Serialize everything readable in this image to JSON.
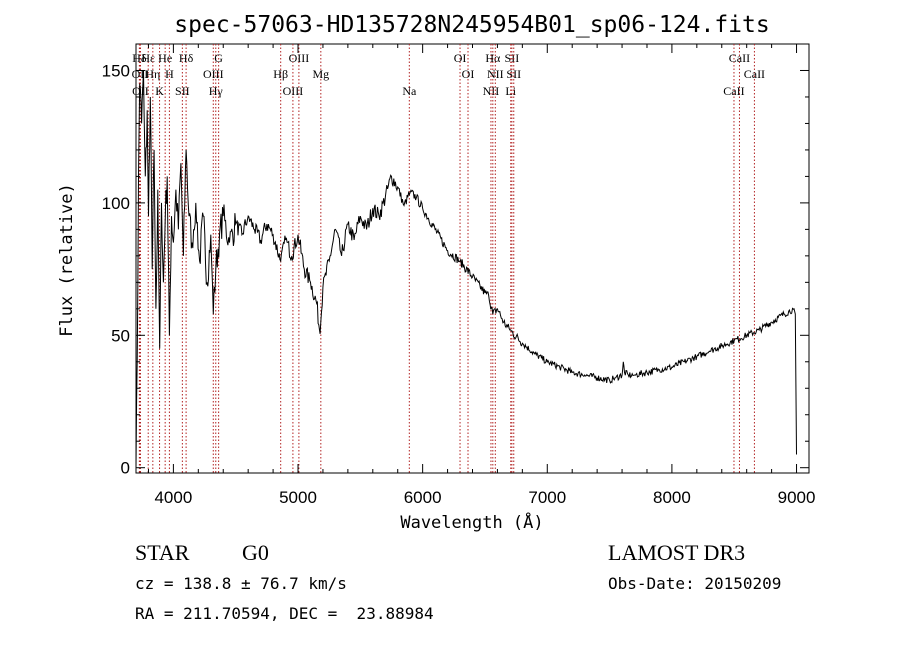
{
  "chart_data": {
    "type": "line",
    "title": "spec-57063-HD135728N245954B01_sp06-124.fits",
    "xlabel": "Wavelength (Å)",
    "ylabel": "Flux (relative)",
    "xlim": [
      3700,
      9100
    ],
    "ylim": [
      -2,
      160
    ],
    "x_ticks": [
      4000,
      5000,
      6000,
      7000,
      8000,
      9000
    ],
    "y_ticks": [
      0,
      50,
      100,
      150
    ],
    "grid": false,
    "series": [
      {
        "name": "flux",
        "x": [
          3700,
          3710,
          3720,
          3730,
          3745,
          3760,
          3775,
          3790,
          3800,
          3815,
          3830,
          3845,
          3860,
          3875,
          3890,
          3905,
          3920,
          3935,
          3950,
          3968,
          3985,
          4000,
          4020,
          4040,
          4060,
          4080,
          4102,
          4125,
          4150,
          4180,
          4210,
          4240,
          4270,
          4300,
          4320,
          4340,
          4370,
          4400,
          4450,
          4500,
          4550,
          4600,
          4650,
          4700,
          4750,
          4800,
          4861,
          4900,
          4950,
          5000,
          5050,
          5100,
          5150,
          5172,
          5183,
          5200,
          5250,
          5300,
          5350,
          5400,
          5450,
          5500,
          5550,
          5600,
          5650,
          5700,
          5750,
          5800,
          5850,
          5900,
          5950,
          6000,
          6100,
          6200,
          6300,
          6400,
          6500,
          6530,
          6563,
          6600,
          6650,
          6700,
          6800,
          6900,
          7000,
          7100,
          7200,
          7300,
          7400,
          7500,
          7550,
          7600,
          7610,
          7620,
          7650,
          7700,
          7800,
          7900,
          8000,
          8100,
          8200,
          8300,
          8400,
          8500,
          8600,
          8700,
          8800,
          8900,
          8980,
          8990,
          9000
        ],
        "y": [
          0,
          40,
          110,
          145,
          130,
          150,
          110,
          135,
          95,
          140,
          75,
          120,
          60,
          105,
          45,
          100,
          70,
          95,
          110,
          50,
          95,
          85,
          105,
          90,
          115,
          80,
          120,
          95,
          85,
          100,
          78,
          95,
          70,
          88,
          58,
          75,
          88,
          95,
          85,
          92,
          88,
          95,
          90,
          86,
          92,
          88,
          78,
          86,
          80,
          88,
          75,
          70,
          62,
          52,
          55,
          68,
          78,
          90,
          80,
          92,
          86,
          95,
          90,
          98,
          95,
          102,
          110,
          106,
          99,
          104,
          102,
          98,
          90,
          82,
          78,
          72,
          66,
          65,
          58,
          60,
          55,
          52,
          47,
          43,
          40,
          38,
          36,
          35,
          34,
          33,
          34,
          35,
          40,
          36,
          35,
          35,
          36,
          37,
          38,
          40,
          42,
          44,
          46,
          48,
          50,
          52,
          55,
          58,
          60,
          58,
          5
        ]
      }
    ],
    "lines": [
      {
        "label": "Hδ",
        "wavelength": 3727
      },
      {
        "label": "OII",
        "wavelength": 3732
      },
      {
        "label": "OII",
        "wavelength": 3736
      },
      {
        "label": "Hε",
        "wavelength": 3798
      },
      {
        "label": "Hη",
        "wavelength": 3835
      },
      {
        "label": "K",
        "wavelength": 3889
      },
      {
        "label": "He",
        "wavelength": 3934
      },
      {
        "label": "H",
        "wavelength": 3968
      },
      {
        "label": "SII",
        "wavelength": 4072
      },
      {
        "label": "Hδ",
        "wavelength": 4102
      },
      {
        "label": "OIII",
        "wavelength": 4320
      },
      {
        "label": "Hγ",
        "wavelength": 4340
      },
      {
        "label": "G",
        "wavelength": 4363
      },
      {
        "label": "Hβ",
        "wavelength": 4861
      },
      {
        "label": "OIII",
        "wavelength": 4959
      },
      {
        "label": "OIII",
        "wavelength": 5007
      },
      {
        "label": "Mg",
        "wavelength": 5183
      },
      {
        "label": "Na",
        "wavelength": 5893
      },
      {
        "label": "OI",
        "wavelength": 6300
      },
      {
        "label": "OI",
        "wavelength": 6364
      },
      {
        "label": "NII",
        "wavelength": 6548
      },
      {
        "label": "Hα",
        "wavelength": 6563
      },
      {
        "label": "NII",
        "wavelength": 6583
      },
      {
        "label": "Li",
        "wavelength": 6707
      },
      {
        "label": "SII",
        "wavelength": 6716
      },
      {
        "label": "SII",
        "wavelength": 6731
      },
      {
        "label": "CaII",
        "wavelength": 8498
      },
      {
        "label": "CaII",
        "wavelength": 8542
      },
      {
        "label": "CaII",
        "wavelength": 8662
      }
    ]
  },
  "info": {
    "object_type": "STAR",
    "subclass": "G0",
    "survey": "LAMOST DR3",
    "cz": "cz = 138.8 ± 76.7 km/s",
    "obs_date": "Obs-Date: 20150209",
    "coords": "RA = 211.70594, DEC =  23.88984"
  },
  "colors": {
    "spectrum": "#000000",
    "line_markers": "#b22222",
    "axes": "#000000"
  }
}
